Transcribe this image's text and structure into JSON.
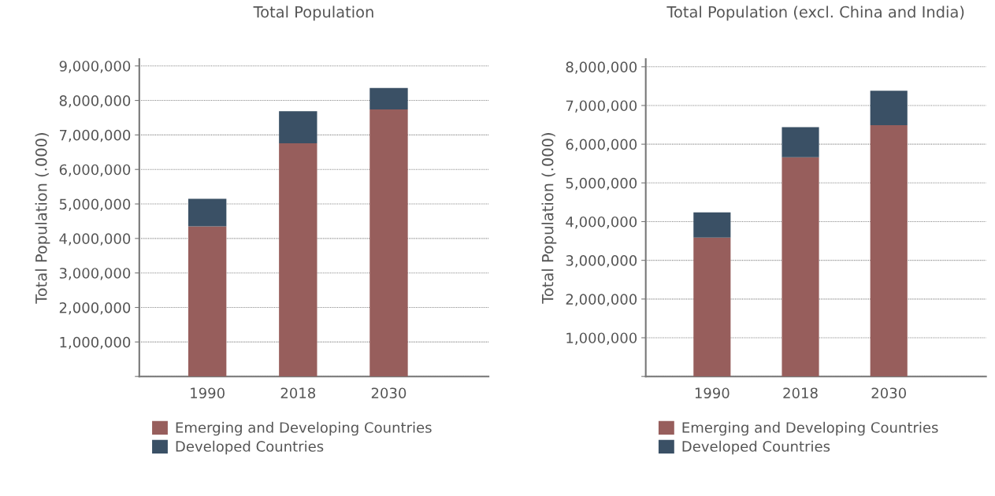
{
  "chart_data": [
    {
      "type": "bar",
      "title": "Total Population",
      "ylabel": "Total Population (.000)",
      "categories": [
        "1990",
        "2018",
        "2030"
      ],
      "stacked": true,
      "grid": "y",
      "legend": "bottom left",
      "ylim": [
        0,
        9200000
      ],
      "yticks": [
        {
          "value": 0,
          "label": null
        },
        {
          "value": 1000000,
          "label": "1,000,000"
        },
        {
          "value": 2000000,
          "label": "2,000,000"
        },
        {
          "value": 3000000,
          "label": "3,000,000"
        },
        {
          "value": 4000000,
          "label": "4,000,000"
        },
        {
          "value": 5000000,
          "label": "5,000,000"
        },
        {
          "value": 6000000,
          "label": "6,000,000"
        },
        {
          "value": 7000000,
          "label": "7,000,000"
        },
        {
          "value": 8000000,
          "label": "8,000,000"
        },
        {
          "value": 9000000,
          "label": "9,000,000"
        }
      ],
      "series": [
        {
          "name": "Emerging and Developing Countries",
          "color": "#975e5c",
          "values": [
            4350000,
            6760000,
            7740000
          ]
        },
        {
          "name": "Developed Countries",
          "color": "#3a5065",
          "values": [
            800000,
            930000,
            620000
          ]
        }
      ]
    },
    {
      "type": "bar",
      "title": "Total Population (excl. China and India)",
      "ylabel": "Total Population (.000)",
      "categories": [
        "1990",
        "2018",
        "2030"
      ],
      "stacked": true,
      "grid": "y",
      "legend": "bottom left",
      "ylim": [
        0,
        8200000
      ],
      "yticks": [
        {
          "value": 0,
          "label": null
        },
        {
          "value": 1000000,
          "label": "1,000,000"
        },
        {
          "value": 2000000,
          "label": "2,000,000"
        },
        {
          "value": 3000000,
          "label": "3,000,000"
        },
        {
          "value": 4000000,
          "label": "4,000,000"
        },
        {
          "value": 5000000,
          "label": "5,000,000"
        },
        {
          "value": 6000000,
          "label": "6,000,000"
        },
        {
          "value": 7000000,
          "label": "7,000,000"
        },
        {
          "value": 8000000,
          "label": "8,000,000"
        }
      ],
      "series": [
        {
          "name": "Emerging and Developing Countries",
          "color": "#975e5c",
          "values": [
            3590000,
            5660000,
            6490000
          ]
        },
        {
          "name": "Developed Countries",
          "color": "#3a5065",
          "values": [
            650000,
            780000,
            890000
          ]
        }
      ]
    }
  ]
}
